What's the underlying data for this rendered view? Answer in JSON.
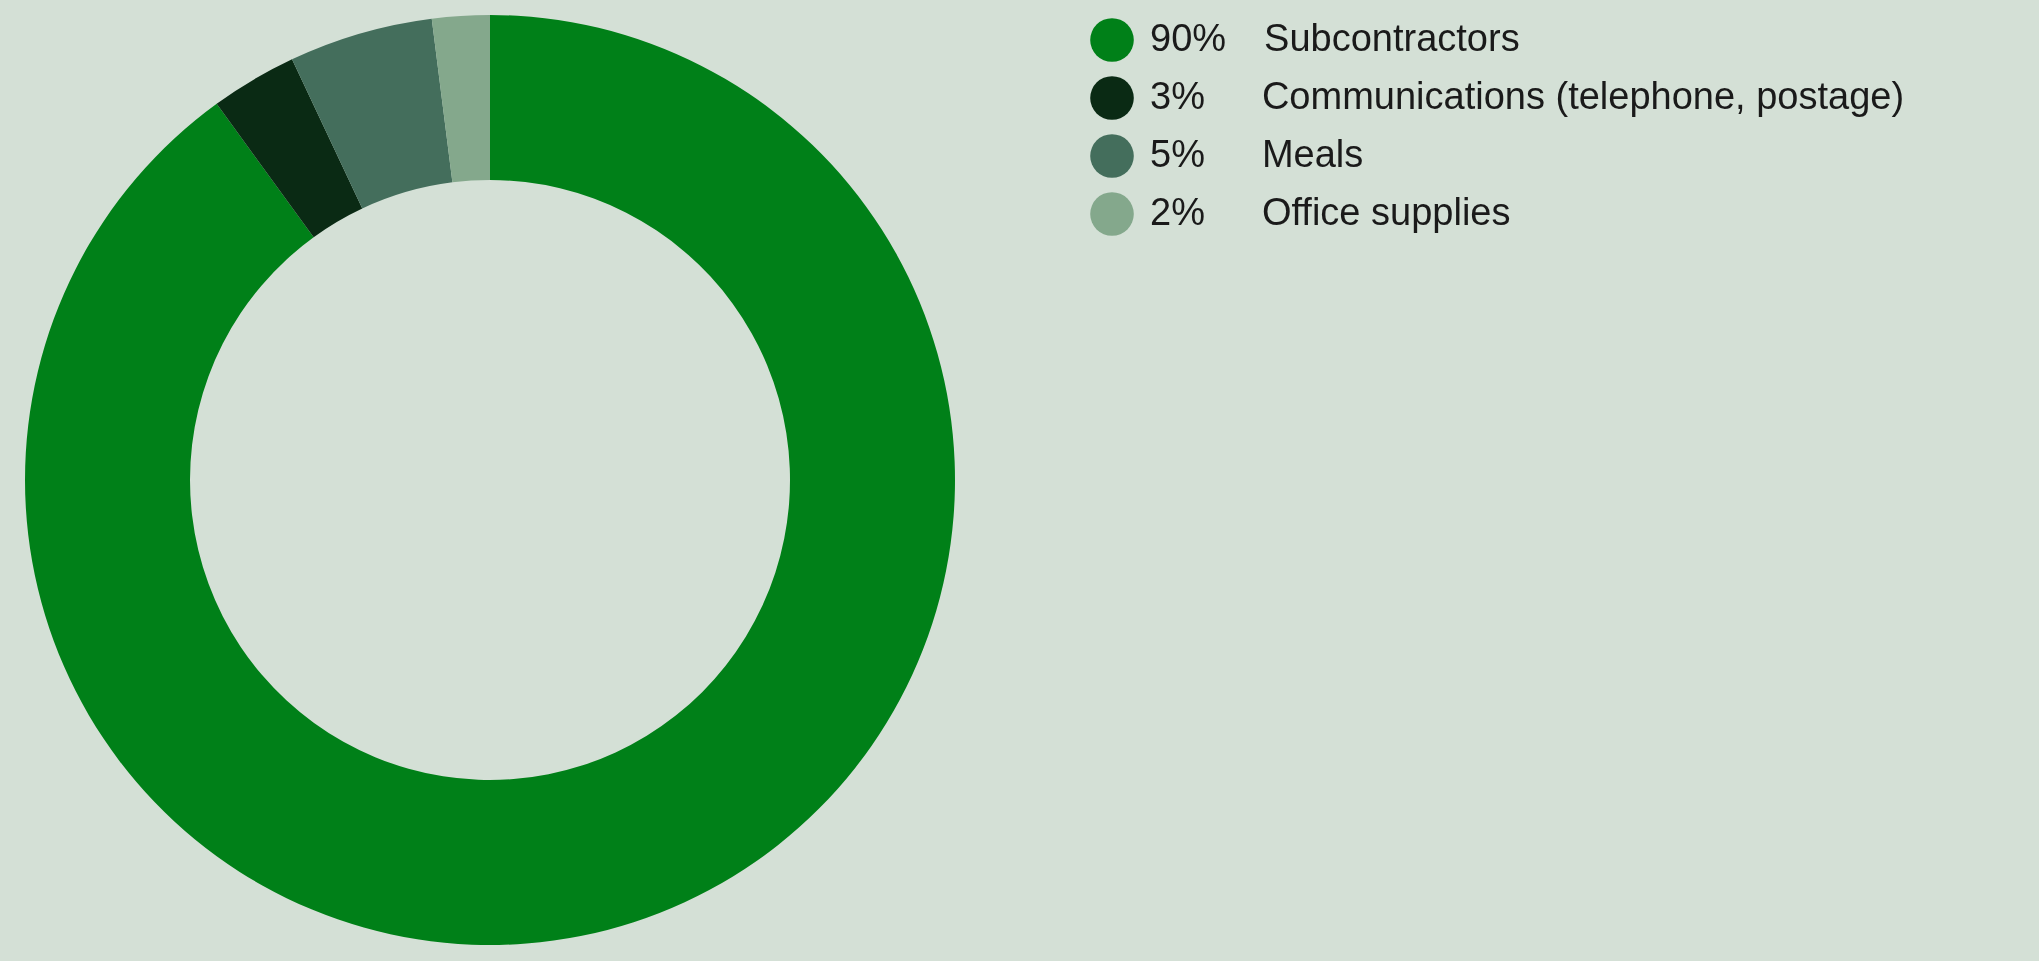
{
  "chart_data": {
    "type": "donut",
    "categories": [
      "Subcontractors",
      "Communications (telephone, postage)",
      "Meals",
      "Office supplies"
    ],
    "values": [
      90,
      3,
      5,
      2
    ],
    "value_labels": [
      "90%",
      "3%",
      "5%",
      "2%"
    ],
    "colors": [
      "#008018",
      "#0a2a14",
      "#446e5c",
      "#84a88c"
    ],
    "legend": "top right"
  }
}
